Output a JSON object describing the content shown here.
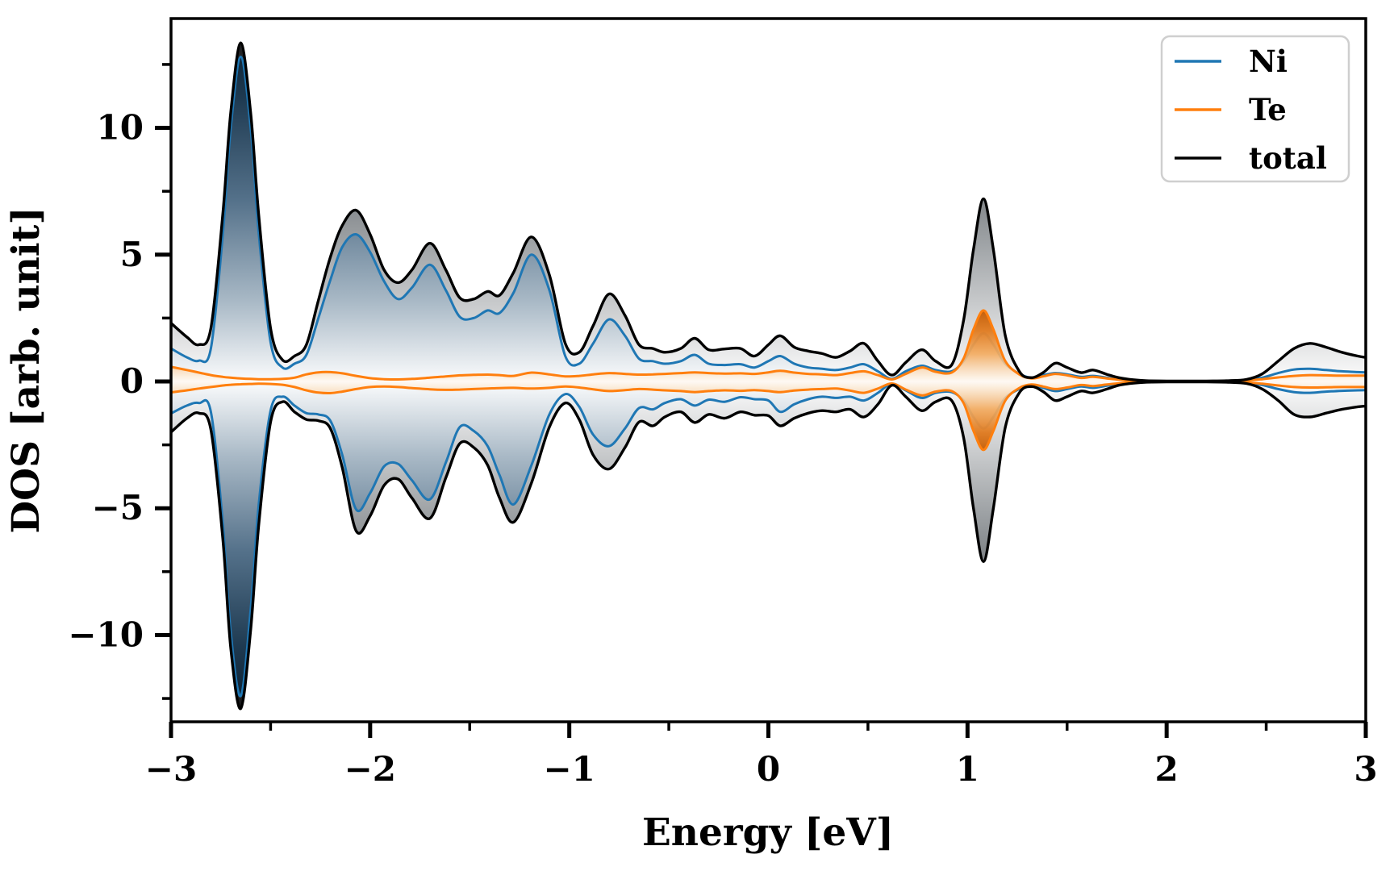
{
  "figure": {
    "background": "#ffffff"
  },
  "legend": {
    "position": "upper right",
    "items": [
      {
        "label": "Ni",
        "color": "#1f77b4"
      },
      {
        "label": "Te",
        "color": "#ff7f0e"
      },
      {
        "label": "total",
        "color": "#000000"
      }
    ]
  },
  "chart_data": {
    "type": "area",
    "title": "",
    "xlabel": "Energy [eV]",
    "ylabel": "DOS [arb. unit]",
    "xlim": [
      -3,
      3
    ],
    "ylim": [
      -13.42,
      14.31
    ],
    "grid": false,
    "legend_position": "upper right",
    "x_ticks": [
      {
        "v": -3,
        "label": "−3"
      },
      {
        "v": -2,
        "label": "−2"
      },
      {
        "v": -1,
        "label": "−1"
      },
      {
        "v": 0,
        "label": "0"
      },
      {
        "v": 1,
        "label": "1"
      },
      {
        "v": 2,
        "label": "2"
      },
      {
        "v": 3,
        "label": "3"
      }
    ],
    "x_minor_ticks": [
      -2.5,
      -1.5,
      -0.5,
      0.5,
      1.5,
      2.5
    ],
    "y_ticks": [
      {
        "v": 10,
        "label": "10"
      },
      {
        "v": 5,
        "label": "5"
      },
      {
        "v": 0,
        "label": "0"
      },
      {
        "v": -5,
        "label": "−5"
      },
      {
        "v": -10,
        "label": "−10"
      }
    ],
    "y_minor_ticks": [
      12.5,
      7.5,
      2.5,
      -2.5,
      -7.5,
      -12.5
    ],
    "x": [
      -3.0,
      -2.92,
      -2.86,
      -2.8,
      -2.74,
      -2.7,
      -2.65,
      -2.6,
      -2.56,
      -2.5,
      -2.44,
      -2.38,
      -2.32,
      -2.26,
      -2.2,
      -2.14,
      -2.07,
      -2.0,
      -1.93,
      -1.86,
      -1.79,
      -1.7,
      -1.62,
      -1.55,
      -1.48,
      -1.41,
      -1.35,
      -1.28,
      -1.19,
      -1.1,
      -1.02,
      -0.95,
      -0.88,
      -0.8,
      -0.72,
      -0.65,
      -0.58,
      -0.52,
      -0.44,
      -0.37,
      -0.3,
      -0.22,
      -0.14,
      -0.07,
      0.0,
      0.06,
      0.13,
      0.2,
      0.27,
      0.34,
      0.41,
      0.48,
      0.55,
      0.62,
      0.69,
      0.77,
      0.84,
      0.92,
      0.98,
      1.03,
      1.08,
      1.13,
      1.19,
      1.26,
      1.32,
      1.38,
      1.44,
      1.5,
      1.57,
      1.63,
      1.7,
      1.76,
      1.83,
      1.9,
      2.0,
      2.1,
      2.2,
      2.3,
      2.4,
      2.48,
      2.56,
      2.64,
      2.72,
      2.8,
      2.88,
      2.96,
      3.0
    ],
    "series": [
      {
        "name": "Ni",
        "color": "#1f77b4",
        "up": [
          1.3,
          0.95,
          0.82,
          1.3,
          5.8,
          10.0,
          12.8,
          10.0,
          5.9,
          1.55,
          0.55,
          0.7,
          1.05,
          2.5,
          4.0,
          5.3,
          5.8,
          5.1,
          3.95,
          3.25,
          3.7,
          4.6,
          3.6,
          2.55,
          2.5,
          2.8,
          2.7,
          3.5,
          5.0,
          3.6,
          1.0,
          0.7,
          1.5,
          2.45,
          1.8,
          0.9,
          0.8,
          0.7,
          0.8,
          1.05,
          0.7,
          0.65,
          0.68,
          0.55,
          0.8,
          1.0,
          0.7,
          0.55,
          0.5,
          0.45,
          0.55,
          0.68,
          0.4,
          0.1,
          0.4,
          0.62,
          0.45,
          0.4,
          0.8,
          1.45,
          1.9,
          1.45,
          0.7,
          0.3,
          0.15,
          0.25,
          0.33,
          0.28,
          0.18,
          0.22,
          0.15,
          0.08,
          0.04,
          0.02,
          0.01,
          0.01,
          0.01,
          0.02,
          0.05,
          0.15,
          0.33,
          0.47,
          0.5,
          0.45,
          0.4,
          0.37,
          0.36
        ],
        "down": [
          -1.26,
          -0.95,
          -0.85,
          -1.2,
          -5.6,
          -9.9,
          -12.4,
          -9.0,
          -4.9,
          -1.15,
          -0.6,
          -0.95,
          -1.25,
          -1.3,
          -1.55,
          -2.9,
          -5.05,
          -4.4,
          -3.35,
          -3.25,
          -3.9,
          -4.65,
          -3.2,
          -1.8,
          -1.95,
          -2.55,
          -3.7,
          -4.85,
          -3.3,
          -1.3,
          -0.5,
          -1.0,
          -2.1,
          -2.55,
          -1.85,
          -1.05,
          -1.1,
          -0.85,
          -0.7,
          -0.95,
          -0.72,
          -0.8,
          -0.62,
          -0.7,
          -0.75,
          -1.2,
          -0.9,
          -0.7,
          -0.6,
          -0.65,
          -0.6,
          -0.75,
          -0.45,
          -0.08,
          -0.35,
          -0.65,
          -0.45,
          -0.42,
          -0.75,
          -1.4,
          -1.85,
          -1.4,
          -0.65,
          -0.3,
          -0.15,
          -0.25,
          -0.38,
          -0.3,
          -0.2,
          -0.25,
          -0.17,
          -0.09,
          -0.04,
          -0.02,
          -0.01,
          -0.01,
          -0.01,
          -0.02,
          -0.05,
          -0.14,
          -0.3,
          -0.42,
          -0.45,
          -0.4,
          -0.37,
          -0.35,
          -0.34
        ]
      },
      {
        "name": "Te",
        "color": "#ff7f0e",
        "up": [
          0.58,
          0.45,
          0.35,
          0.25,
          0.18,
          0.15,
          0.12,
          0.1,
          0.09,
          0.09,
          0.1,
          0.15,
          0.28,
          0.36,
          0.37,
          0.32,
          0.22,
          0.13,
          0.09,
          0.08,
          0.1,
          0.15,
          0.2,
          0.24,
          0.26,
          0.27,
          0.25,
          0.22,
          0.35,
          0.28,
          0.2,
          0.22,
          0.28,
          0.33,
          0.3,
          0.27,
          0.28,
          0.3,
          0.33,
          0.36,
          0.33,
          0.31,
          0.32,
          0.3,
          0.36,
          0.42,
          0.35,
          0.3,
          0.28,
          0.25,
          0.33,
          0.4,
          0.25,
          0.08,
          0.3,
          0.55,
          0.38,
          0.35,
          0.9,
          2.05,
          2.8,
          2.05,
          0.8,
          0.28,
          0.12,
          0.2,
          0.3,
          0.24,
          0.14,
          0.18,
          0.12,
          0.07,
          0.03,
          0.02,
          0.01,
          0.01,
          0.01,
          0.02,
          0.04,
          0.09,
          0.16,
          0.22,
          0.25,
          0.24,
          0.23,
          0.23,
          0.23
        ],
        "down": [
          -0.43,
          -0.35,
          -0.28,
          -0.22,
          -0.16,
          -0.13,
          -0.11,
          -0.1,
          -0.09,
          -0.1,
          -0.13,
          -0.22,
          -0.35,
          -0.44,
          -0.46,
          -0.4,
          -0.3,
          -0.22,
          -0.2,
          -0.22,
          -0.26,
          -0.31,
          -0.33,
          -0.32,
          -0.3,
          -0.28,
          -0.26,
          -0.25,
          -0.28,
          -0.25,
          -0.2,
          -0.24,
          -0.31,
          -0.38,
          -0.34,
          -0.3,
          -0.32,
          -0.35,
          -0.38,
          -0.42,
          -0.38,
          -0.35,
          -0.37,
          -0.34,
          -0.38,
          -0.42,
          -0.36,
          -0.32,
          -0.3,
          -0.28,
          -0.36,
          -0.45,
          -0.28,
          -0.08,
          -0.32,
          -0.55,
          -0.4,
          -0.38,
          -0.85,
          -1.95,
          -2.7,
          -1.95,
          -0.75,
          -0.26,
          -0.12,
          -0.2,
          -0.3,
          -0.24,
          -0.14,
          -0.18,
          -0.12,
          -0.07,
          -0.03,
          -0.02,
          -0.01,
          -0.01,
          -0.01,
          -0.02,
          -0.04,
          -0.09,
          -0.16,
          -0.22,
          -0.24,
          -0.23,
          -0.22,
          -0.22,
          -0.22
        ]
      },
      {
        "name": "total",
        "color": "#000000",
        "up": [
          2.3,
          1.75,
          1.45,
          2.1,
          6.6,
          10.6,
          13.35,
          10.6,
          6.6,
          2.1,
          0.85,
          1.0,
          1.45,
          3.2,
          4.9,
          6.15,
          6.75,
          5.8,
          4.4,
          3.9,
          4.4,
          5.45,
          4.4,
          3.3,
          3.25,
          3.55,
          3.4,
          4.3,
          5.7,
          4.2,
          1.5,
          1.15,
          2.2,
          3.45,
          2.6,
          1.45,
          1.3,
          1.15,
          1.3,
          1.7,
          1.25,
          1.28,
          1.3,
          1.0,
          1.45,
          1.8,
          1.35,
          1.2,
          1.1,
          0.95,
          1.2,
          1.5,
          0.8,
          0.25,
          0.75,
          1.25,
          0.8,
          0.65,
          2.4,
          5.2,
          7.2,
          5.2,
          1.8,
          0.4,
          0.15,
          0.35,
          0.72,
          0.55,
          0.35,
          0.45,
          0.28,
          0.15,
          0.07,
          0.03,
          0.02,
          0.02,
          0.02,
          0.03,
          0.08,
          0.3,
          0.8,
          1.3,
          1.5,
          1.35,
          1.15,
          1.0,
          0.95
        ],
        "down": [
          -2.0,
          -1.45,
          -1.25,
          -1.9,
          -6.2,
          -10.5,
          -12.9,
          -9.8,
          -5.7,
          -1.6,
          -0.8,
          -1.2,
          -1.5,
          -1.55,
          -1.85,
          -3.4,
          -5.9,
          -5.3,
          -4.1,
          -3.85,
          -4.6,
          -5.4,
          -3.8,
          -2.45,
          -2.6,
          -3.3,
          -4.6,
          -5.55,
          -4.0,
          -1.8,
          -0.85,
          -1.5,
          -2.9,
          -3.45,
          -2.6,
          -1.6,
          -1.75,
          -1.4,
          -1.2,
          -1.62,
          -1.3,
          -1.45,
          -1.2,
          -1.33,
          -1.35,
          -1.75,
          -1.45,
          -1.25,
          -1.15,
          -1.2,
          -1.1,
          -1.4,
          -0.9,
          -0.15,
          -0.6,
          -1.15,
          -0.8,
          -0.75,
          -2.2,
          -5.0,
          -7.1,
          -5.0,
          -1.8,
          -0.45,
          -0.2,
          -0.4,
          -0.75,
          -0.6,
          -0.38,
          -0.45,
          -0.3,
          -0.15,
          -0.07,
          -0.03,
          -0.02,
          -0.02,
          -0.02,
          -0.03,
          -0.08,
          -0.3,
          -0.75,
          -1.3,
          -1.4,
          -1.25,
          -1.1,
          -1.0,
          -0.97
        ]
      }
    ]
  }
}
